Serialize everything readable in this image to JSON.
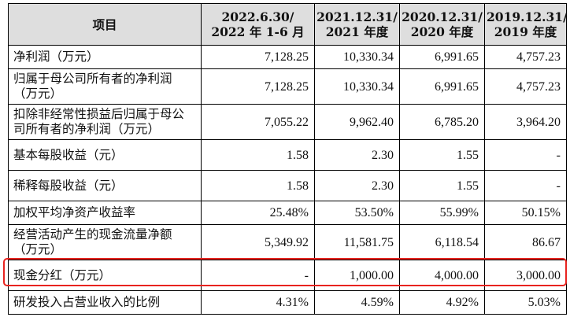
{
  "table": {
    "header": {
      "item_label": "项目",
      "periods": [
        {
          "line1": "2022.6.30/",
          "line2": "2022 年 1-6 月"
        },
        {
          "line1": "2021.12.31/",
          "line2": "2021 年度"
        },
        {
          "line1": "2020.12.31/",
          "line2": "2020 年度"
        },
        {
          "line1": "2019.12.31/",
          "line2": "2019 年度"
        }
      ]
    },
    "rows": [
      {
        "label": "净利润（万元）",
        "values": [
          "7,128.25",
          "10,330.34",
          "6,991.65",
          "4,757.23"
        ]
      },
      {
        "label": "归属于母公司所有者的净利润（万元）",
        "values": [
          "7,128.25",
          "10,330.34",
          "6,991.65",
          "4,757.23"
        ]
      },
      {
        "label": "扣除非经常性损益后归属于母公司所有者的净利润（万元）",
        "values": [
          "7,055.22",
          "9,962.40",
          "6,785.20",
          "3,964.20"
        ]
      },
      {
        "label": "基本每股收益（元）",
        "values": [
          "1.58",
          "2.30",
          "1.55",
          "-"
        ]
      },
      {
        "label": "稀释每股收益（元）",
        "values": [
          "1.58",
          "2.30",
          "1.55",
          "-"
        ]
      },
      {
        "label": "加权平均净资产收益率",
        "values": [
          "25.48%",
          "53.50%",
          "55.99%",
          "50.15%"
        ]
      },
      {
        "label": "经营活动产生的现金流量净额（万元）",
        "values": [
          "5,349.92",
          "11,581.75",
          "6,118.54",
          "86.67"
        ]
      },
      {
        "label": "现金分红（万元）",
        "values": [
          "-",
          "1,000.00",
          "4,000.00",
          "3,000.00"
        ]
      },
      {
        "label": "研发投入占营业收入的比例",
        "values": [
          "4.31%",
          "4.59%",
          "4.92%",
          "5.03%"
        ]
      }
    ]
  },
  "highlight": {
    "color": "#e8231f",
    "row": "现金分红（万元）"
  }
}
